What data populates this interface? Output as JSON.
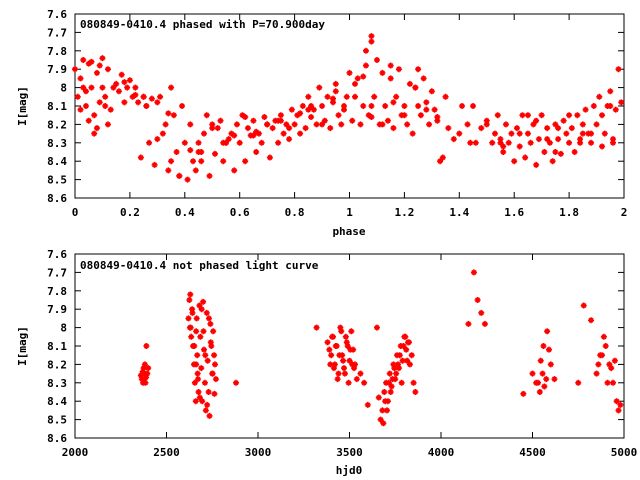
{
  "colors": {
    "points": "#ff0000",
    "axis": "#000000",
    "background": "#ffffff"
  },
  "chart_data": [
    {
      "type": "scatter",
      "title": "080849-0410.4 phased with P=70.900day",
      "xlabel": "phase",
      "ylabel": "I[mag]",
      "xlim": [
        0,
        2
      ],
      "ylim": [
        8.6,
        7.6
      ],
      "y_inverted": true,
      "grid": false,
      "legend": "none",
      "x_ticks": [
        "0",
        "0.2",
        "0.4",
        "0.6",
        "0.8",
        "1",
        "1.2",
        "1.4",
        "1.6",
        "1.8",
        "2"
      ],
      "x_tick_values": [
        0,
        0.2,
        0.4,
        0.6,
        0.8,
        1,
        1.2,
        1.4,
        1.6,
        1.8,
        2
      ],
      "y_ticks": [
        "7.6",
        "7.7",
        "7.8",
        "7.9",
        "8",
        "8.1",
        "8.2",
        "8.3",
        "8.4",
        "8.5",
        "8.6"
      ],
      "y_tick_values": [
        7.6,
        7.7,
        7.8,
        7.9,
        8.0,
        8.1,
        8.2,
        8.3,
        8.4,
        8.5,
        8.6
      ],
      "series": [
        {
          "x": [
            0.0,
            0.01,
            0.02,
            0.03,
            0.04,
            0.05,
            0.06,
            0.07,
            0.08,
            0.09,
            0.1,
            0.11,
            0.12,
            0.03,
            0.05,
            0.07,
            0.09,
            0.11,
            0.13,
            0.02,
            0.04,
            0.06,
            0.08,
            0.1,
            0.12,
            0.14,
            0.15,
            0.16,
            0.17,
            0.18,
            0.19,
            0.2,
            0.21,
            0.22,
            0.23,
            0.24,
            0.25,
            0.26,
            0.27,
            0.28,
            0.29,
            0.3,
            0.31,
            0.32,
            0.33,
            0.34,
            0.35,
            0.36,
            0.37,
            0.38,
            0.39,
            0.4,
            0.41,
            0.42,
            0.43,
            0.44,
            0.45,
            0.46,
            0.47,
            0.48,
            0.49,
            0.5,
            0.51,
            0.52,
            0.53,
            0.54,
            0.55,
            0.56,
            0.57,
            0.58,
            0.59,
            0.6,
            0.61,
            0.62,
            0.63,
            0.64,
            0.65,
            0.66,
            0.67,
            0.68,
            0.69,
            0.7,
            0.71,
            0.72,
            0.73,
            0.74,
            0.75,
            0.76,
            0.77,
            0.78,
            0.79,
            0.8,
            0.81,
            0.82,
            0.83,
            0.84,
            0.85,
            0.86,
            0.87,
            0.88,
            0.89,
            0.9,
            0.91,
            0.92,
            0.93,
            0.94,
            0.95,
            0.96,
            0.97,
            0.98,
            0.99,
            1.0,
            1.01,
            1.02,
            1.03,
            1.04,
            1.05,
            1.06,
            1.07,
            1.08,
            1.09,
            1.1,
            1.11,
            1.12,
            1.13,
            1.14,
            1.15,
            1.16,
            1.17,
            1.18,
            1.19,
            1.2,
            1.21,
            1.22,
            1.23,
            1.24,
            1.25,
            1.26,
            1.27,
            1.28,
            1.29,
            1.3,
            1.31,
            1.32,
            1.33,
            1.34,
            1.4,
            1.41,
            1.43,
            1.46,
            1.48,
            1.5,
            1.52,
            1.53,
            1.54,
            1.55,
            1.56,
            1.57,
            1.58,
            1.59,
            1.6,
            1.61,
            1.62,
            1.63,
            1.64,
            1.65,
            1.66,
            1.67,
            1.68,
            1.69,
            1.7,
            1.71,
            1.72,
            1.73,
            1.74,
            1.75,
            1.76,
            1.77,
            1.78,
            1.79,
            1.8,
            1.81,
            1.82,
            1.83,
            1.84,
            1.85,
            1.86,
            1.87,
            1.88,
            1.89,
            1.9,
            1.91,
            1.92,
            1.93,
            1.94,
            1.95,
            1.96,
            1.97,
            1.98,
            1.99,
            0.18,
            0.22,
            0.26,
            0.3,
            0.34,
            0.38,
            0.42,
            0.46,
            0.5,
            0.54,
            0.58,
            0.62,
            0.66,
            0.7,
            0.74,
            0.78,
            0.82,
            0.86,
            0.9,
            0.94,
            0.98,
            1.02,
            1.06,
            1.08,
            1.08,
            1.08,
            1.12,
            1.16,
            1.2,
            1.24,
            1.28,
            1.32,
            1.36,
            1.38,
            1.44,
            1.5,
            1.56,
            1.62,
            1.68,
            1.72,
            1.76,
            1.8,
            1.84,
            1.88,
            1.92,
            1.96,
            0.25,
            0.35,
            0.45,
            0.55,
            0.65,
            0.75,
            0.85,
            0.95,
            1.05,
            1.15,
            1.25,
            1.35,
            1.45,
            1.55,
            1.65,
            1.75,
            1.85,
            1.95
          ],
          "y": [
            7.9,
            8.05,
            7.95,
            7.85,
            8.1,
            7.87,
            8.0,
            8.15,
            7.92,
            8.08,
            7.84,
            8.1,
            8.2,
            8.0,
            8.18,
            8.25,
            7.88,
            8.05,
            8.12,
            8.12,
            8.02,
            7.86,
            8.22,
            8.0,
            7.9,
            8.0,
            7.98,
            8.02,
            7.93,
            8.08,
            8.0,
            7.96,
            8.05,
            8.0,
            8.08,
            8.38,
            8.05,
            8.1,
            8.3,
            8.06,
            8.42,
            8.08,
            8.05,
            8.25,
            8.2,
            8.45,
            8.0,
            8.15,
            8.35,
            8.48,
            8.1,
            8.3,
            8.5,
            8.2,
            8.4,
            8.45,
            8.3,
            8.35,
            8.25,
            8.15,
            8.48,
            8.2,
            8.36,
            8.22,
            8.18,
            8.4,
            8.3,
            8.28,
            8.25,
            8.45,
            8.2,
            8.3,
            8.15,
            8.4,
            8.22,
            8.26,
            8.18,
            8.35,
            8.25,
            8.3,
            8.16,
            8.2,
            8.38,
            8.22,
            8.18,
            8.3,
            8.15,
            8.25,
            8.2,
            8.28,
            8.12,
            8.2,
            8.15,
            8.25,
            8.1,
            8.22,
            8.05,
            8.16,
            8.12,
            8.2,
            8.0,
            8.1,
            8.18,
            8.05,
            8.22,
            8.08,
            7.98,
            8.15,
            8.2,
            8.1,
            8.05,
            7.92,
            8.18,
            8.05,
            7.95,
            8.2,
            8.1,
            7.88,
            8.15,
            7.75,
            8.05,
            7.85,
            8.2,
            7.92,
            8.1,
            8.18,
            7.95,
            8.22,
            8.05,
            7.9,
            8.15,
            8.1,
            8.2,
            7.98,
            8.25,
            8.0,
            8.1,
            8.15,
            7.95,
            8.08,
            8.2,
            8.02,
            8.12,
            8.18,
            8.4,
            8.38,
            8.25,
            8.1,
            8.2,
            8.3,
            8.22,
            8.18,
            8.3,
            8.25,
            8.15,
            8.28,
            8.35,
            8.2,
            8.3,
            8.25,
            8.4,
            8.22,
            8.32,
            8.15,
            8.38,
            8.25,
            8.3,
            8.2,
            8.42,
            8.28,
            8.15,
            8.35,
            8.22,
            8.3,
            8.4,
            8.2,
            8.28,
            8.36,
            8.18,
            8.25,
            8.3,
            8.22,
            8.35,
            8.15,
            8.28,
            8.2,
            8.12,
            8.25,
            8.3,
            8.1,
            8.2,
            8.05,
            8.15,
            8.25,
            8.1,
            8.02,
            8.3,
            8.12,
            7.9,
            8.08,
            7.97,
            8.04,
            8.1,
            8.28,
            8.14,
            8.48,
            8.34,
            8.4,
            8.22,
            8.3,
            8.26,
            8.16,
            8.24,
            8.2,
            8.18,
            8.22,
            8.14,
            8.1,
            8.2,
            8.06,
            8.12,
            7.98,
            7.8,
            7.72,
            8.16,
            8.1,
            8.2,
            8.08,
            8.15,
            8.0,
            8.12,
            8.16,
            8.22,
            8.28,
            8.3,
            8.2,
            8.32,
            8.25,
            8.18,
            8.28,
            8.22,
            8.15,
            8.3,
            8.25,
            8.32,
            8.28,
            8.05,
            8.4,
            8.35,
            8.3,
            8.26,
            8.18,
            8.12,
            8.02,
            7.94,
            7.88,
            7.9,
            8.05,
            8.1,
            8.3,
            8.15,
            8.35,
            8.25,
            8.1
          ]
        }
      ]
    },
    {
      "type": "scatter",
      "title": "080849-0410.4 not phased light curve",
      "xlabel": "hjd0",
      "ylabel": "I[mag]",
      "xlim": [
        2000,
        5000
      ],
      "ylim": [
        8.6,
        7.6
      ],
      "y_inverted": true,
      "grid": false,
      "legend": "none",
      "x_ticks": [
        "2000",
        "2500",
        "3000",
        "3500",
        "4000",
        "4500",
        "5000"
      ],
      "x_tick_values": [
        2000,
        2500,
        3000,
        3500,
        4000,
        4500,
        5000
      ],
      "y_ticks": [
        "7.6",
        "7.7",
        "7.8",
        "7.9",
        "8",
        "8.1",
        "8.2",
        "8.3",
        "8.4",
        "8.5",
        "8.6"
      ],
      "y_tick_values": [
        7.6,
        7.7,
        7.8,
        7.9,
        8.0,
        8.1,
        8.2,
        8.3,
        8.4,
        8.5,
        8.6
      ],
      "series": [
        {
          "x": [
            2360,
            2365,
            2370,
            2372,
            2375,
            2378,
            2380,
            2382,
            2385,
            2388,
            2390,
            2395,
            2400,
            2620,
            2625,
            2628,
            2630,
            2635,
            2640,
            2645,
            2650,
            2655,
            2660,
            2662,
            2665,
            2668,
            2670,
            2675,
            2680,
            2685,
            2690,
            2695,
            2700,
            2705,
            2710,
            2715,
            2720,
            2725,
            2730,
            2735,
            2740,
            2745,
            2750,
            2755,
            2760,
            2765,
            2770,
            2880,
            3320,
            3380,
            3390,
            3400,
            3410,
            3420,
            3430,
            3440,
            3450,
            3460,
            3470,
            3480,
            3490,
            3500,
            3510,
            3520,
            3530,
            3540,
            3560,
            3580,
            3600,
            3650,
            3660,
            3670,
            3680,
            3690,
            3700,
            3710,
            3720,
            3730,
            3740,
            3750,
            3760,
            3770,
            3780,
            3790,
            3800,
            3810,
            3820,
            3830,
            3840,
            3850,
            3860,
            4150,
            4180,
            4200,
            4220,
            4240,
            4450,
            4500,
            4520,
            4540,
            4560,
            4580,
            4600,
            4620,
            4750,
            4780,
            4820,
            4850,
            4870,
            4900,
            4920,
            4940,
            4960,
            4980,
            3395,
            3405,
            3415,
            3425,
            3435,
            3445,
            3455,
            3465,
            3475,
            3485,
            3495,
            3505,
            3515,
            3525,
            3685,
            3695,
            3705,
            3715,
            3725,
            3735,
            3745,
            3755,
            3765,
            3775,
            3785,
            3795,
            3805,
            3815,
            3825,
            2632,
            2642,
            2652,
            2662,
            2672,
            2682,
            2692,
            2702,
            2712,
            2722,
            2732,
            2742,
            2752,
            2762,
            4530,
            4545,
            4555,
            4565,
            4575,
            4590,
            4860,
            4880,
            4890,
            4910,
            4930,
            4950,
            4970
          ],
          "y": [
            8.26,
            8.28,
            8.24,
            8.3,
            8.22,
            8.28,
            8.25,
            8.2,
            8.3,
            8.27,
            8.1,
            8.25,
            8.22,
            7.95,
            7.85,
            8.0,
            7.82,
            8.05,
            7.9,
            8.1,
            8.2,
            8.3,
            8.4,
            8.02,
            7.95,
            8.15,
            8.25,
            8.35,
            7.88,
            8.05,
            8.22,
            8.4,
            7.86,
            8.12,
            8.3,
            8.45,
            7.92,
            8.18,
            8.35,
            8.48,
            7.98,
            8.1,
            8.25,
            8.02,
            8.15,
            8.2,
            8.28,
            8.3,
            8.0,
            8.08,
            8.12,
            8.15,
            8.05,
            8.2,
            8.1,
            8.25,
            8.0,
            8.15,
            8.22,
            8.05,
            8.1,
            8.18,
            8.02,
            8.12,
            8.2,
            8.28,
            8.25,
            8.3,
            8.42,
            8.0,
            8.38,
            8.5,
            8.45,
            8.35,
            8.3,
            8.4,
            8.25,
            8.32,
            8.2,
            8.28,
            8.15,
            8.22,
            8.1,
            8.18,
            8.05,
            8.12,
            8.08,
            8.2,
            8.15,
            8.3,
            8.35,
            7.98,
            7.7,
            7.85,
            7.92,
            7.98,
            8.36,
            8.25,
            8.3,
            8.35,
            8.1,
            8.02,
            8.2,
            8.28,
            8.3,
            7.88,
            7.96,
            8.25,
            8.15,
            8.1,
            8.2,
            8.3,
            8.4,
            8.42,
            8.2,
            8.05,
            8.22,
            8.1,
            8.28,
            8.15,
            8.02,
            8.18,
            8.25,
            8.08,
            8.3,
            8.12,
            8.2,
            8.22,
            8.52,
            8.4,
            8.45,
            8.3,
            8.35,
            8.28,
            8.22,
            8.25,
            8.2,
            8.15,
            8.3,
            8.1,
            8.05,
            8.18,
            8.08,
            8.0,
            7.92,
            8.1,
            8.2,
            8.28,
            8.38,
            7.9,
            8.02,
            8.15,
            8.42,
            7.95,
            8.08,
            8.25,
            8.36,
            8.3,
            8.18,
            8.25,
            8.32,
            8.28,
            8.12,
            8.2,
            8.15,
            8.05,
            8.3,
            8.22,
            8.18,
            8.45
          ]
        }
      ]
    }
  ]
}
